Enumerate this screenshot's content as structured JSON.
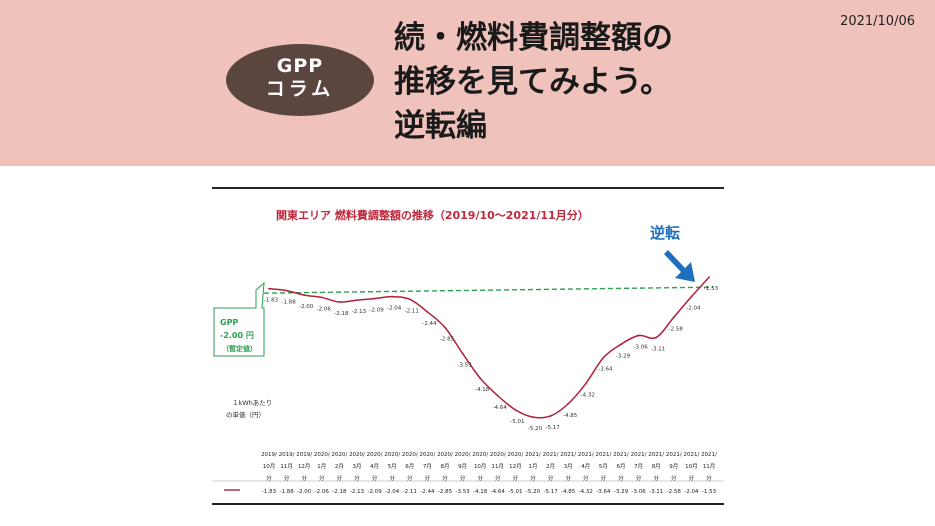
{
  "header": {
    "date": "2021/10/06",
    "badge_line1": "GPP",
    "badge_line2": "コラム",
    "title_line1": "続・燃料費調整額の",
    "title_line2": "推移を見てみよう。",
    "title_line3": "逆転編"
  },
  "colors": {
    "header_bg": "#efc2bb",
    "badge_bg": "#5a463f",
    "series_line": "#b0203a",
    "gpp_line": "#2e9e52",
    "title_red": "#c0283c",
    "arrow_blue": "#1f6fbf"
  },
  "chart_data": {
    "type": "line",
    "title": "関東エリア 燃料費調整額の推移（2019/10～2021/11月分）",
    "ylabel_line1": "１kWhあたり",
    "ylabel_line2": "の単価（円）",
    "x": [
      [
        "2019/",
        "10月",
        "分"
      ],
      [
        "2019/",
        "11月",
        "分"
      ],
      [
        "2019/",
        "12月",
        "分"
      ],
      [
        "2020/",
        "1月",
        "分"
      ],
      [
        "2020/",
        "2月",
        "分"
      ],
      [
        "2020/",
        "3月",
        "分"
      ],
      [
        "2020/",
        "4月",
        "分"
      ],
      [
        "2020/",
        "5月",
        "分"
      ],
      [
        "2020/",
        "6月",
        "分"
      ],
      [
        "2020/",
        "7月",
        "分"
      ],
      [
        "2020/",
        "8月",
        "分"
      ],
      [
        "2020/",
        "9月",
        "分"
      ],
      [
        "2020/",
        "10月",
        "分"
      ],
      [
        "2020/",
        "11月",
        "分"
      ],
      [
        "2020/",
        "12月",
        "分"
      ],
      [
        "2021/",
        "1月",
        "分"
      ],
      [
        "2021/",
        "2月",
        "分"
      ],
      [
        "2021/",
        "3月",
        "分"
      ],
      [
        "2021/",
        "4月",
        "分"
      ],
      [
        "2021/",
        "5月",
        "分"
      ],
      [
        "2021/",
        "6月",
        "分"
      ],
      [
        "2021/",
        "7月",
        "分"
      ],
      [
        "2021/",
        "8月",
        "分"
      ],
      [
        "2021/",
        "9月",
        "分"
      ],
      [
        "2021/",
        "10月",
        "分"
      ],
      [
        "2021/",
        "11月",
        "分"
      ]
    ],
    "values": [
      -1.83,
      -1.88,
      -2.0,
      -2.06,
      -2.18,
      -2.13,
      -2.09,
      -2.04,
      -2.11,
      -2.44,
      -2.85,
      -3.53,
      -4.18,
      -4.64,
      -5.01,
      -5.2,
      -5.17,
      -4.85,
      -4.32,
      -3.64,
      -3.29,
      -3.06,
      -3.11,
      -2.58,
      -2.04,
      -1.53
    ],
    "labels": [
      "-1.83",
      "-1.88",
      "-2.00",
      "-2.06",
      "-2.18",
      "-2.13",
      "-2.09",
      "-2.04",
      "-2.11",
      "-2.44",
      "-2.85",
      "-3.53",
      "-4.18",
      "-4.64",
      "-5.01",
      "-5.20",
      "-5.17",
      "-4.85",
      "-4.32",
      "-3.64",
      "-3.29",
      "-3.06",
      "-3.11",
      "-2.58",
      "-2.04",
      "-1.53"
    ],
    "reference": {
      "value": -2.0,
      "label_line1": "GPP",
      "label_line2": "-2.00 円",
      "label_line3": "（暫定値）"
    },
    "annotation": "逆転",
    "grid": false,
    "legend": "table-bottom"
  }
}
